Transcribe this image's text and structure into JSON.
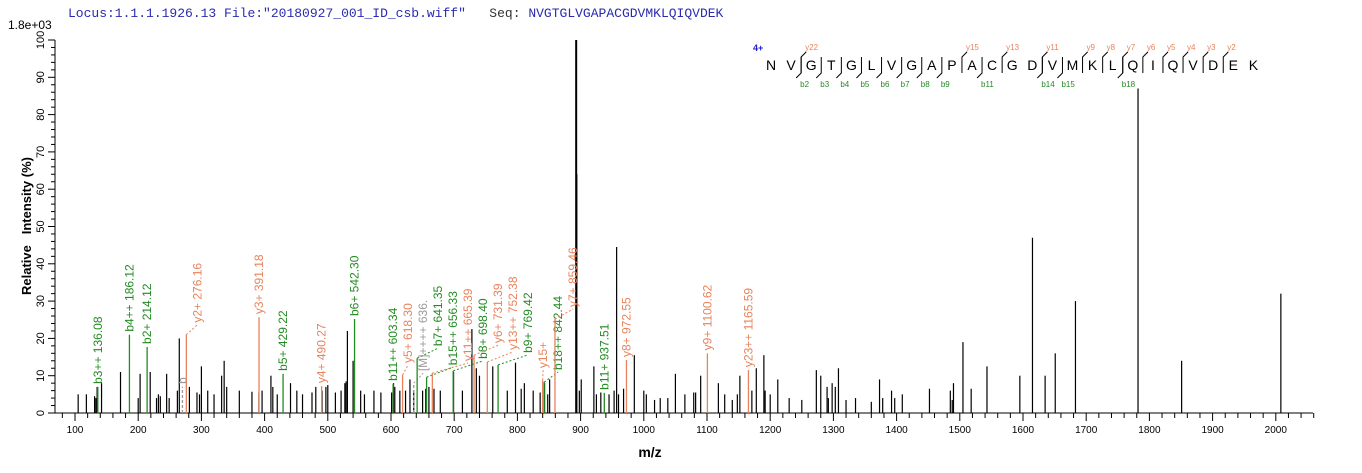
{
  "header": {
    "locus": "Locus:1.1.1.1926.13",
    "file": "File:\"20180927_001_ID_csb.wiff\"",
    "seq_label": "Seq:",
    "sequence": "NVGTGLVGAPACGDVMKLQIQVDEK"
  },
  "colors": {
    "b_ion": "#228b22",
    "y_ion": "#e8835c",
    "precursor": "#999999",
    "peak": "#000000",
    "charge": "#1a1acc"
  },
  "chart_data": {
    "type": "bar",
    "title": "",
    "xlabel": "m/z",
    "ylabel": "Relative   Intensity (%)",
    "y_scale_label": "1.8e+03",
    "xlim": [
      69,
      2060
    ],
    "ylim": [
      0,
      100
    ],
    "xticks": [
      100,
      200,
      300,
      400,
      500,
      600,
      700,
      800,
      900,
      1000,
      1100,
      1200,
      1300,
      1400,
      1500,
      1600,
      1700,
      1800,
      1900,
      2000
    ],
    "yticks": [
      0,
      10,
      20,
      30,
      40,
      50,
      60,
      70,
      80,
      90,
      100
    ],
    "grid": false,
    "peaks": [
      [
        105,
        5
      ],
      [
        118,
        5
      ],
      [
        131,
        4.5
      ],
      [
        133,
        4
      ],
      [
        135,
        7
      ],
      [
        142,
        8
      ],
      [
        172,
        11
      ],
      [
        200,
        4
      ],
      [
        203,
        10.5
      ],
      [
        219,
        11
      ],
      [
        229,
        4
      ],
      [
        232,
        5
      ],
      [
        235,
        4.5
      ],
      [
        245,
        10.5
      ],
      [
        249,
        4
      ],
      [
        262,
        6
      ],
      [
        265,
        20
      ],
      [
        281,
        7
      ],
      [
        293,
        5.5
      ],
      [
        297,
        5
      ],
      [
        300,
        12.5
      ],
      [
        310,
        6
      ],
      [
        320,
        5
      ],
      [
        332,
        10
      ],
      [
        336,
        14
      ],
      [
        340,
        7
      ],
      [
        360,
        6
      ],
      [
        380,
        5.7
      ],
      [
        391,
        5.5
      ],
      [
        396,
        6
      ],
      [
        410,
        10
      ],
      [
        413,
        7
      ],
      [
        420,
        5
      ],
      [
        441,
        8
      ],
      [
        451,
        6
      ],
      [
        460,
        5
      ],
      [
        475,
        5.5
      ],
      [
        481,
        7
      ],
      [
        491,
        6
      ],
      [
        497,
        7
      ],
      [
        500,
        7.5
      ],
      [
        512,
        5.5
      ],
      [
        521,
        6
      ],
      [
        527,
        8
      ],
      [
        529,
        8.5
      ],
      [
        531,
        22
      ],
      [
        540,
        14
      ],
      [
        552,
        6
      ],
      [
        558,
        5
      ],
      [
        573,
        6
      ],
      [
        584,
        5.5
      ],
      [
        601,
        5.5
      ],
      [
        604,
        8
      ],
      [
        606,
        7
      ],
      [
        614,
        6
      ],
      [
        623,
        6
      ],
      [
        630,
        9
      ],
      [
        636,
        6
      ],
      [
        650,
        6
      ],
      [
        655,
        6.5
      ],
      [
        660,
        7
      ],
      [
        668,
        6.5
      ],
      [
        678,
        6
      ],
      [
        699,
        11
      ],
      [
        713,
        6
      ],
      [
        728,
        22.5
      ],
      [
        735,
        12
      ],
      [
        740,
        10
      ],
      [
        761,
        12.5
      ],
      [
        784,
        6
      ],
      [
        797,
        13.5
      ],
      [
        806,
        6.5
      ],
      [
        811,
        8
      ],
      [
        825,
        6
      ],
      [
        836,
        5.5
      ],
      [
        843,
        8
      ],
      [
        848,
        5
      ],
      [
        851,
        9
      ],
      [
        893,
        100
      ],
      [
        894,
        64
      ],
      [
        898,
        6
      ],
      [
        901,
        9
      ],
      [
        921,
        12.5
      ],
      [
        925,
        5
      ],
      [
        932,
        5.5
      ],
      [
        945,
        5
      ],
      [
        953,
        6
      ],
      [
        957,
        44.5
      ],
      [
        960,
        5
      ],
      [
        968,
        6.5
      ],
      [
        985,
        15.5
      ],
      [
        1000,
        6
      ],
      [
        1004,
        5
      ],
      [
        1017,
        3.5
      ],
      [
        1026,
        4
      ],
      [
        1038,
        4
      ],
      [
        1050,
        10.5
      ],
      [
        1065,
        5
      ],
      [
        1079,
        5.5
      ],
      [
        1082,
        5.5
      ],
      [
        1090,
        10
      ],
      [
        1118,
        8
      ],
      [
        1128,
        5
      ],
      [
        1140,
        3.5
      ],
      [
        1148,
        5
      ],
      [
        1152,
        10
      ],
      [
        1171,
        6
      ],
      [
        1178,
        12
      ],
      [
        1190,
        15.5
      ],
      [
        1192,
        6
      ],
      [
        1200,
        5
      ],
      [
        1212,
        9
      ],
      [
        1230,
        4
      ],
      [
        1250,
        3.5
      ],
      [
        1273,
        11.5
      ],
      [
        1280,
        10
      ],
      [
        1290,
        7
      ],
      [
        1292,
        4
      ],
      [
        1298,
        8
      ],
      [
        1303,
        7
      ],
      [
        1308,
        12
      ],
      [
        1320,
        3.5
      ],
      [
        1335,
        4
      ],
      [
        1360,
        3
      ],
      [
        1373,
        9
      ],
      [
        1378,
        4
      ],
      [
        1392,
        6
      ],
      [
        1397,
        4
      ],
      [
        1409,
        5
      ],
      [
        1452,
        6.5
      ],
      [
        1485,
        6
      ],
      [
        1488,
        3.5
      ],
      [
        1490,
        8
      ],
      [
        1505,
        19
      ],
      [
        1518,
        6.5
      ],
      [
        1543,
        12.5
      ],
      [
        1595,
        10
      ],
      [
        1615,
        47
      ],
      [
        1635,
        10
      ],
      [
        1651,
        16
      ],
      [
        1683,
        30
      ],
      [
        1782,
        87
      ],
      [
        1851,
        14
      ],
      [
        2008,
        32
      ]
    ],
    "annotated_peaks": [
      {
        "type": "b",
        "mz": 136.08,
        "intensity": 7,
        "label": "b3++ 136.08"
      },
      {
        "type": "b",
        "mz": 186.12,
        "intensity": 21,
        "label": "b4++ 186.12"
      },
      {
        "type": "b",
        "mz": 214.12,
        "intensity": 17.7,
        "label": "b2+ 214.12"
      },
      {
        "type": "m",
        "mz": 270,
        "intensity": 7,
        "label": "b"
      },
      {
        "type": "y",
        "mz": 276.16,
        "intensity": 21,
        "label": "y2+ 276.16"
      },
      {
        "type": "y",
        "mz": 391.18,
        "intensity": 25.7,
        "label": "y3+ 391.18"
      },
      {
        "type": "b",
        "mz": 429.22,
        "intensity": 10.5,
        "label": "b5+ 429.22"
      },
      {
        "type": "y",
        "mz": 490.27,
        "intensity": 7.2,
        "label": "y4+ 490.27"
      },
      {
        "type": "b",
        "mz": 542.3,
        "intensity": 25.2,
        "label": "b6+ 542.30"
      },
      {
        "type": "b",
        "mz": 603.34,
        "intensity": 7.8,
        "label": "b11++ 603.34"
      },
      {
        "type": "y",
        "mz": 618.3,
        "intensity": 10.2,
        "label": "y5+ 618.30"
      },
      {
        "type": "m",
        "mz": 636,
        "intensity": 8,
        "label": "[M]++++ 636."
      },
      {
        "type": "b",
        "mz": 641.35,
        "intensity": 14.7,
        "label": "b7+ 641.35"
      },
      {
        "type": "b",
        "mz": 656.33,
        "intensity": 9.6,
        "label": "b15++ 656.33"
      },
      {
        "type": "y",
        "mz": 665.39,
        "intensity": 10.7,
        "label": "y11++ 665.39"
      },
      {
        "type": "b",
        "mz": 698.4,
        "intensity": 11.3,
        "label": "b8+ 698.40"
      },
      {
        "type": "y",
        "mz": 731.39,
        "intensity": 15.5,
        "label": "y6+ 731.39"
      },
      {
        "type": "y",
        "mz": 752.38,
        "intensity": 13.7,
        "label": "y13++ 752.38"
      },
      {
        "type": "b",
        "mz": 769.42,
        "intensity": 12.9,
        "label": "b9+ 769.42"
      },
      {
        "type": "y",
        "mz": 840,
        "intensity": 8.8,
        "label": "y15+"
      },
      {
        "type": "b",
        "mz": 842.44,
        "intensity": 8.3,
        "label": "b18++ 842.44"
      },
      {
        "type": "y",
        "mz": 859.46,
        "intensity": 25.2,
        "label": "y7+ 859.46"
      },
      {
        "type": "b",
        "mz": 937.51,
        "intensity": 5.4,
        "label": "b11+ 937.51"
      },
      {
        "type": "y",
        "mz": 972.55,
        "intensity": 14.2,
        "label": "y8+ 972.55"
      },
      {
        "type": "y",
        "mz": 1100.62,
        "intensity": 16,
        "label": "y9+ 1100.62"
      },
      {
        "type": "y",
        "mz": 1165.59,
        "intensity": 11.5,
        "label": "y23++ 1165.59"
      }
    ]
  },
  "fragment_map": {
    "charge": "4+",
    "residues": [
      "N",
      "V",
      "G",
      "T",
      "G",
      "L",
      "V",
      "G",
      "A",
      "P",
      "A",
      "C",
      "G",
      "D",
      "V",
      "M",
      "K",
      "L",
      "Q",
      "I",
      "Q",
      "V",
      "D",
      "E",
      "K"
    ],
    "b_ions": [
      {
        "label": "b2",
        "after": 2
      },
      {
        "label": "b3",
        "after": 3
      },
      {
        "label": "b4",
        "after": 4
      },
      {
        "label": "b5",
        "after": 5
      },
      {
        "label": "b6",
        "after": 6
      },
      {
        "label": "b7",
        "after": 7
      },
      {
        "label": "b8",
        "after": 8
      },
      {
        "label": "b9",
        "after": 9
      },
      {
        "label": "b11",
        "after": 11
      },
      {
        "label": "b14",
        "after": 14
      },
      {
        "label": "b15",
        "after": 15
      },
      {
        "label": "b18",
        "after": 18
      }
    ],
    "y_ions": [
      {
        "label": "y22",
        "after": 2
      },
      {
        "label": "y15",
        "after": 10
      },
      {
        "label": "y13",
        "after": 12
      },
      {
        "label": "y11",
        "after": 14
      },
      {
        "label": "y9",
        "after": 16
      },
      {
        "label": "y8",
        "after": 17
      },
      {
        "label": "y7",
        "after": 18
      },
      {
        "label": "y6",
        "after": 19
      },
      {
        "label": "y5",
        "after": 20
      },
      {
        "label": "y4",
        "after": 21
      },
      {
        "label": "y3",
        "after": 22
      },
      {
        "label": "y2",
        "after": 23
      }
    ]
  }
}
